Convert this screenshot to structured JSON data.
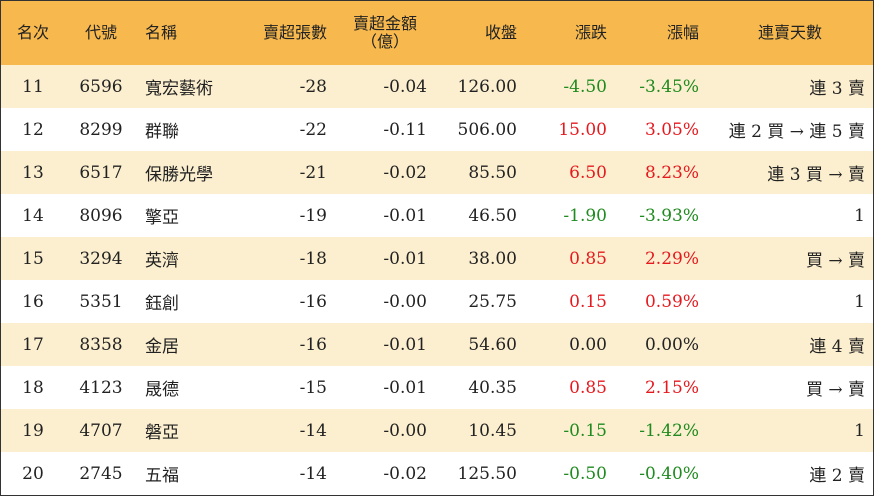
{
  "headers": {
    "rank": "名次",
    "code": "代號",
    "name": "名稱",
    "net_sell_lots": "賣超張數",
    "net_sell_amount_line1": "賣超金額",
    "net_sell_amount_line2": "（億）",
    "close": "收盤",
    "change": "漲跌",
    "change_pct": "漲幅",
    "streak": "連賣天數"
  },
  "colors": {
    "header_bg": "#f7b94e",
    "alt_row_bg": "#fcefcf",
    "up": "#e5191e",
    "down": "#1f8a1f"
  },
  "rows": [
    {
      "rank": "11",
      "code": "6596",
      "name": "寬宏藝術",
      "lots": "-28",
      "amount": "-0.04",
      "close": "126.00",
      "change": "-4.50",
      "pct": "-3.45%",
      "dir": "down",
      "streak": "連 3 賣"
    },
    {
      "rank": "12",
      "code": "8299",
      "name": "群聯",
      "lots": "-22",
      "amount": "-0.11",
      "close": "506.00",
      "change": "15.00",
      "pct": "3.05%",
      "dir": "up",
      "streak": "連 2 買 → 連 5 賣"
    },
    {
      "rank": "13",
      "code": "6517",
      "name": "保勝光學",
      "lots": "-21",
      "amount": "-0.02",
      "close": "85.50",
      "change": "6.50",
      "pct": "8.23%",
      "dir": "up",
      "streak": "連 3 買 → 賣"
    },
    {
      "rank": "14",
      "code": "8096",
      "name": "擎亞",
      "lots": "-19",
      "amount": "-0.01",
      "close": "46.50",
      "change": "-1.90",
      "pct": "-3.93%",
      "dir": "down",
      "streak": "1"
    },
    {
      "rank": "15",
      "code": "3294",
      "name": "英濟",
      "lots": "-18",
      "amount": "-0.01",
      "close": "38.00",
      "change": "0.85",
      "pct": "2.29%",
      "dir": "up",
      "streak": "買 → 賣"
    },
    {
      "rank": "16",
      "code": "5351",
      "name": "鈺創",
      "lots": "-16",
      "amount": "-0.00",
      "close": "25.75",
      "change": "0.15",
      "pct": "0.59%",
      "dir": "up",
      "streak": "1"
    },
    {
      "rank": "17",
      "code": "8358",
      "name": "金居",
      "lots": "-16",
      "amount": "-0.01",
      "close": "54.60",
      "change": "0.00",
      "pct": "0.00%",
      "dir": "flat",
      "streak": "連 4 賣"
    },
    {
      "rank": "18",
      "code": "4123",
      "name": "晟德",
      "lots": "-15",
      "amount": "-0.01",
      "close": "40.35",
      "change": "0.85",
      "pct": "2.15%",
      "dir": "up",
      "streak": "買 → 賣"
    },
    {
      "rank": "19",
      "code": "4707",
      "name": "磐亞",
      "lots": "-14",
      "amount": "-0.00",
      "close": "10.45",
      "change": "-0.15",
      "pct": "-1.42%",
      "dir": "down",
      "streak": "1"
    },
    {
      "rank": "20",
      "code": "2745",
      "name": "五福",
      "lots": "-14",
      "amount": "-0.02",
      "close": "125.50",
      "change": "-0.50",
      "pct": "-0.40%",
      "dir": "down",
      "streak": "連 2 賣"
    }
  ]
}
